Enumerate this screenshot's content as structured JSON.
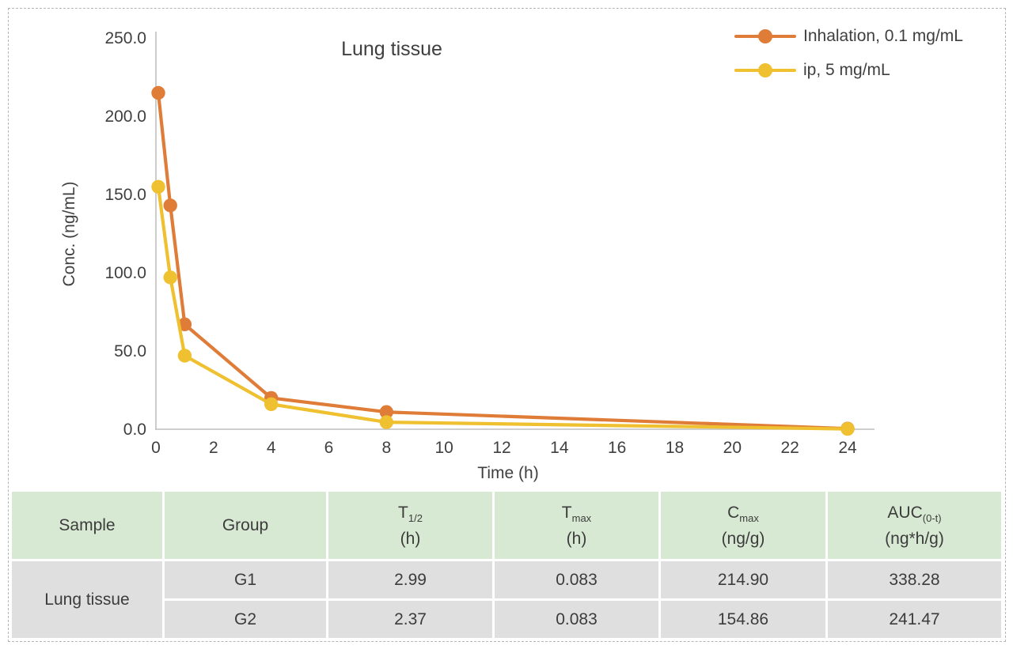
{
  "chart_data": {
    "type": "line",
    "title": "Lung tissue",
    "xlabel": "Time (h)",
    "ylabel": "Conc. (ng/mL)",
    "xlim": [
      0,
      24
    ],
    "ylim": [
      0,
      250
    ],
    "x_ticks": [
      0,
      2,
      4,
      6,
      8,
      10,
      12,
      14,
      16,
      18,
      20,
      22,
      24
    ],
    "y_ticks": [
      0,
      50,
      100,
      150,
      200,
      250
    ],
    "y_tick_format": "one-decimal",
    "grid": false,
    "legend_position": "top-right",
    "series": [
      {
        "name": "Inhalation, 0.1 mg/mL",
        "color": "#DE7C38",
        "marker": "circle",
        "x": [
          0.083,
          0.5,
          1,
          4,
          8,
          24
        ],
        "y": [
          214.9,
          143,
          67,
          20,
          11,
          0.4
        ]
      },
      {
        "name": "ip, 5 mg/mL",
        "color": "#EFC02F",
        "marker": "circle",
        "x": [
          0.083,
          0.5,
          1,
          4,
          8,
          24
        ],
        "y": [
          154.9,
          97,
          47,
          16,
          4.5,
          0.2
        ]
      }
    ]
  },
  "table": {
    "header": {
      "sample": "Sample",
      "group": "Group",
      "t_half_sym": "T",
      "t_half_sub": "1/2",
      "t_half_unit": "(h)",
      "t_max_sym": "T",
      "t_max_sub": "max",
      "t_max_unit": "(h)",
      "c_max_sym": "C",
      "c_max_sub": "max",
      "c_max_unit": "(ng/g)",
      "auc_sym": "AUC",
      "auc_sub": "(0-t)",
      "auc_unit": "(ng*h/g)"
    },
    "rows": [
      {
        "sample": "Lung tissue",
        "group": "G1",
        "t_half": "2.99",
        "t_max": "0.083",
        "c_max": "214.90",
        "auc": "338.28"
      },
      {
        "group": "G2",
        "t_half": "2.37",
        "t_max": "0.083",
        "c_max": "154.86",
        "auc": "241.47"
      }
    ]
  },
  "colors": {
    "text": "#3F3F3F",
    "axis_line": "#BFBFBF",
    "dashed_border": "#B5B5B5",
    "table_header_bg": "#D8E9D3",
    "table_row_bg": "#DFDFDF",
    "background": "#FFFFFF"
  }
}
